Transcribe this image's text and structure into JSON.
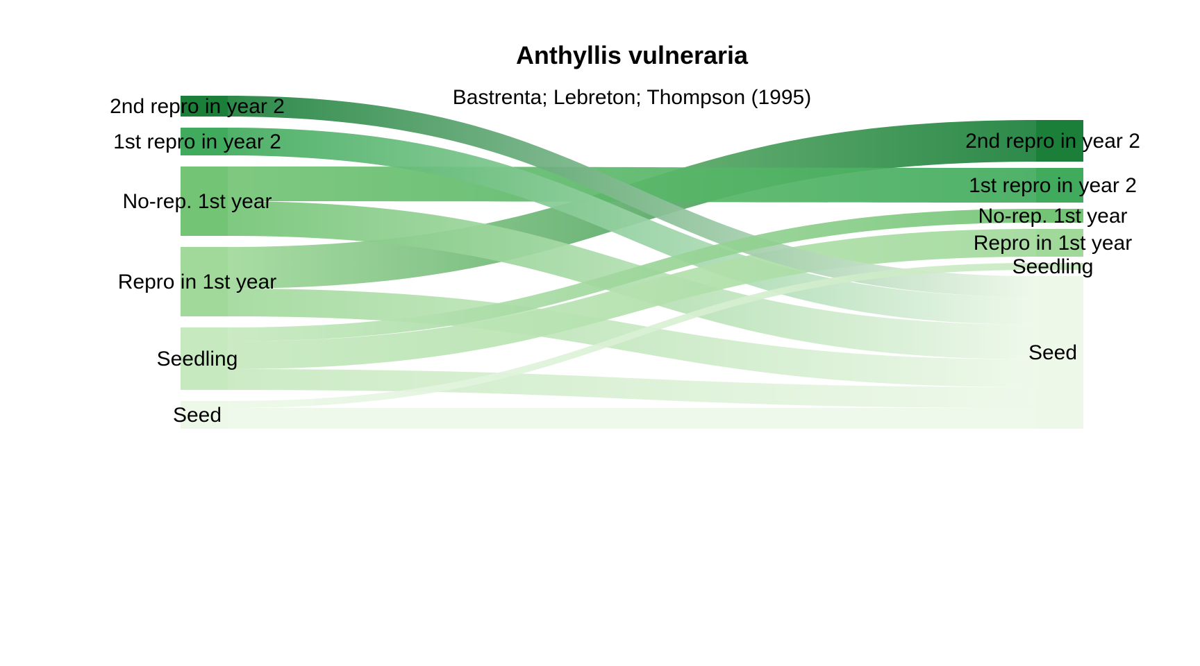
{
  "diagram": {
    "type": "sankey",
    "title": "Anthyllis vulneraria",
    "subtitle": "Bastrenta; Lebreton; Thompson (1995)",
    "stages": [
      "Seed",
      "Seedling",
      "Repro in 1st year",
      "No-rep. 1st year",
      "1st repro in year 2",
      "2nd repro in year 2"
    ],
    "colors": {
      "Seed": "#edf8e9",
      "Seedling": "#c7e9c0",
      "Repro in 1st year": "#a1d99b",
      "No-rep. 1st year": "#74c476",
      "1st repro in year 2": "#41ab5d",
      "2nd repro in year 2": "#1b7f3a"
    },
    "flows": [
      {
        "from": "2nd repro in year 2",
        "to": "Seed",
        "value": 1.5
      },
      {
        "from": "1st repro in year 2",
        "to": "Seed",
        "value": 2.0
      },
      {
        "from": "No-rep. 1st year",
        "to": "1st repro in year 2",
        "value": 2.5
      },
      {
        "from": "No-rep. 1st year",
        "to": "Seed",
        "value": 2.5
      },
      {
        "from": "Repro in 1st year",
        "to": "2nd repro in year 2",
        "value": 3.0
      },
      {
        "from": "Repro in 1st year",
        "to": "Seed",
        "value": 2.0
      },
      {
        "from": "Seedling",
        "to": "No-rep. 1st year",
        "value": 1.0
      },
      {
        "from": "Seedling",
        "to": "Repro in 1st year",
        "value": 2.0
      },
      {
        "from": "Seedling",
        "to": "Seed",
        "value": 1.5
      },
      {
        "from": "Seed",
        "to": "Seedling",
        "value": 0.5
      },
      {
        "from": "Seed",
        "to": "Seed",
        "value": 1.5
      }
    ]
  }
}
